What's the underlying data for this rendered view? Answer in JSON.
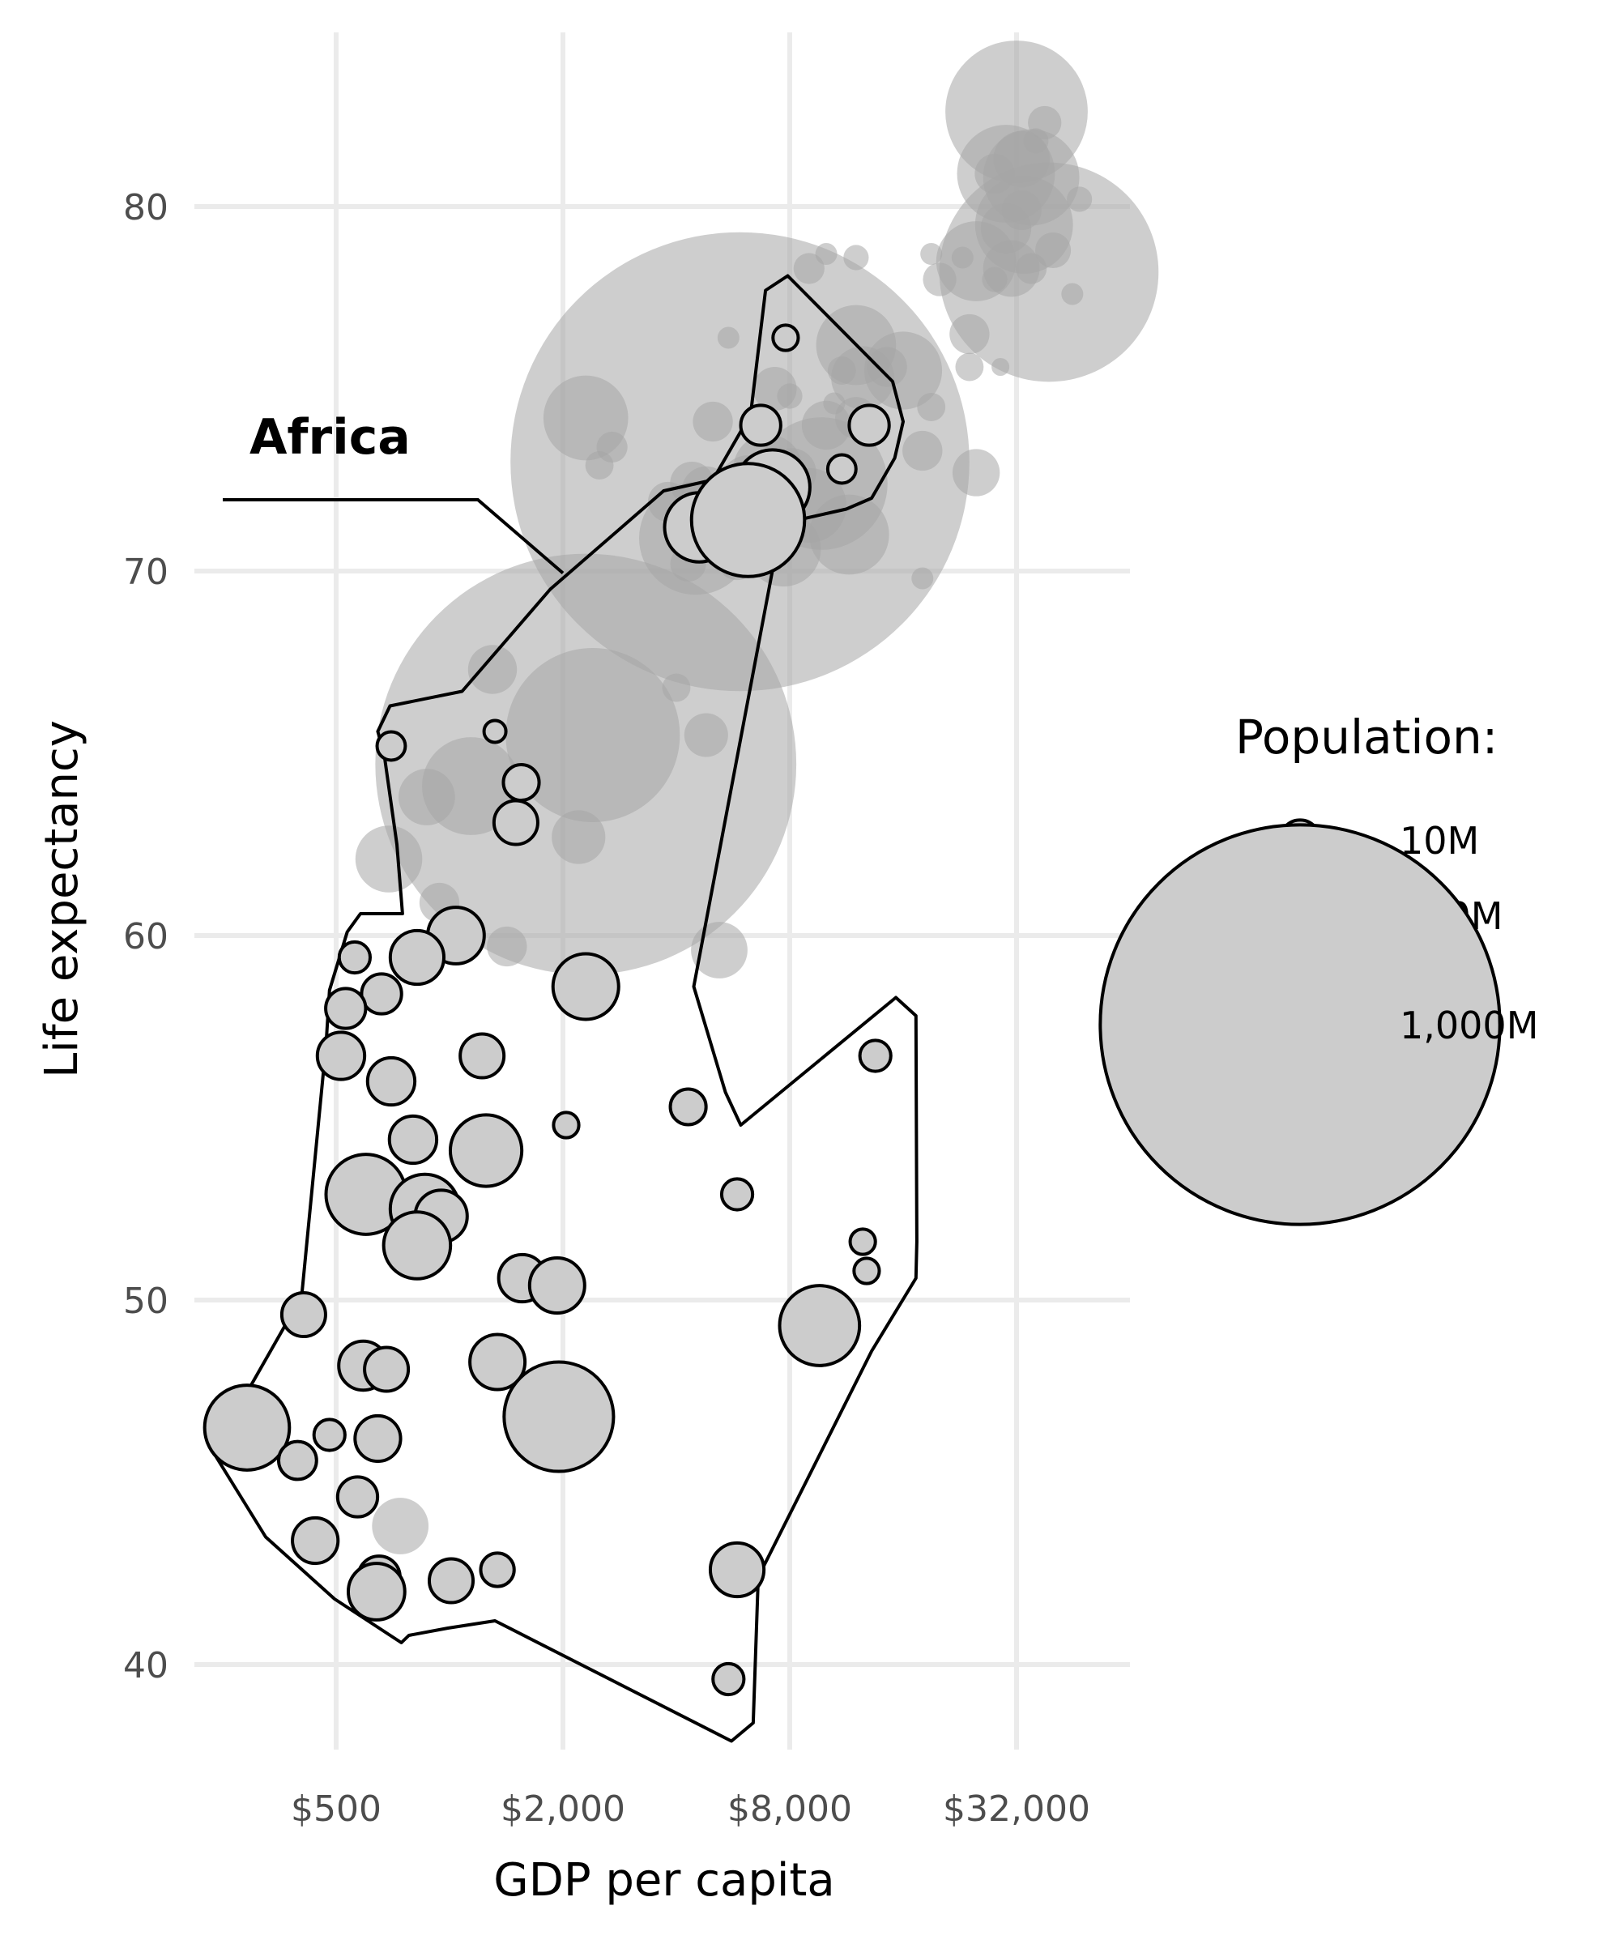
{
  "chart_data": {
    "type": "scatter",
    "xlabel": "GDP per capita",
    "ylabel": "Life expectancy",
    "x_scale": "log2",
    "x_ticks": [
      500,
      2000,
      8000,
      32000
    ],
    "x_tick_labels": [
      "$500",
      "$2,000",
      "$8,000",
      "$32,000"
    ],
    "y_ticks": [
      40,
      50,
      60,
      70,
      80
    ],
    "y_tick_labels": [
      "40",
      "50",
      "60",
      "70",
      "80"
    ],
    "xlim": [
      240,
      60000
    ],
    "ylim": [
      37,
      85
    ],
    "grid": true,
    "legend": {
      "title": "Population:",
      "position": "right",
      "entries": [
        {
          "label": "10M",
          "pop": 10
        },
        {
          "label": "100M",
          "pop": 100
        },
        {
          "label": "1,000M",
          "pop": 1000
        }
      ]
    },
    "annotation": {
      "text": "Africa",
      "target": [
        2000,
        69.5
      ]
    },
    "highlight_group": "Africa",
    "colors": {
      "point_fill": "#cccccc",
      "point_stroke": "#000000",
      "other_fill": "#a6a6a6",
      "hull_stroke": "#000000"
    },
    "hull": [
      [
        250,
        46.3
      ],
      [
        405,
        50.1
      ],
      [
        470,
        57.0
      ],
      [
        480,
        58.5
      ],
      [
        535,
        60.1
      ],
      [
        580,
        60.6
      ],
      [
        750,
        60.6
      ],
      [
        725,
        62.5
      ],
      [
        670,
        65.0
      ],
      [
        645,
        65.6
      ],
      [
        695,
        66.3
      ],
      [
        1080,
        66.7
      ],
      [
        1850,
        69.5
      ],
      [
        3700,
        72.2
      ],
      [
        5000,
        72.5
      ],
      [
        6300,
        74.3
      ],
      [
        6900,
        77.7
      ],
      [
        7900,
        78.1
      ],
      [
        15000,
        75.2
      ],
      [
        16000,
        74.1
      ],
      [
        15200,
        73.1
      ],
      [
        13200,
        72.0
      ],
      [
        11300,
        71.7
      ],
      [
        7600,
        71.3
      ],
      [
        4450,
        58.6
      ],
      [
        5400,
        55.7
      ],
      [
        5930,
        54.8
      ],
      [
        15300,
        58.3
      ],
      [
        17300,
        57.8
      ],
      [
        17400,
        51.6
      ],
      [
        17300,
        50.6
      ],
      [
        13200,
        48.6
      ],
      [
        6600,
        42.4
      ],
      [
        6400,
        38.4
      ],
      [
        5600,
        37.9
      ],
      [
        1320,
        41.2
      ],
      [
        990,
        41.0
      ],
      [
        780,
        40.8
      ],
      [
        745,
        40.6
      ],
      [
        495,
        41.8
      ],
      [
        325,
        43.5
      ],
      [
        240,
        45.7
      ],
      [
        250,
        46.3
      ]
    ],
    "series": [
      {
        "name": "Africa",
        "points": [
          {
            "x": 7800,
            "y": 76.4,
            "pop": 4
          },
          {
            "x": 6700,
            "y": 74.0,
            "pop": 10
          },
          {
            "x": 13000,
            "y": 74.0,
            "pop": 10
          },
          {
            "x": 11000,
            "y": 72.8,
            "pop": 5
          },
          {
            "x": 7200,
            "y": 72.3,
            "pop": 35
          },
          {
            "x": 4600,
            "y": 71.2,
            "pop": 30
          },
          {
            "x": 6200,
            "y": 71.4,
            "pop": 80
          },
          {
            "x": 700,
            "y": 65.2,
            "pop": 5
          },
          {
            "x": 1320,
            "y": 65.6,
            "pop": 3
          },
          {
            "x": 1550,
            "y": 64.2,
            "pop": 8
          },
          {
            "x": 1500,
            "y": 63.1,
            "pop": 12
          },
          {
            "x": 1040,
            "y": 60.0,
            "pop": 20
          },
          {
            "x": 820,
            "y": 59.4,
            "pop": 18
          },
          {
            "x": 560,
            "y": 59.4,
            "pop": 6
          },
          {
            "x": 660,
            "y": 58.4,
            "pop": 10
          },
          {
            "x": 2300,
            "y": 58.6,
            "pop": 27
          },
          {
            "x": 530,
            "y": 58.0,
            "pop": 10
          },
          {
            "x": 515,
            "y": 56.7,
            "pop": 14
          },
          {
            "x": 1220,
            "y": 56.7,
            "pop": 12
          },
          {
            "x": 13500,
            "y": 56.7,
            "pop": 6
          },
          {
            "x": 700,
            "y": 56.0,
            "pop": 14
          },
          {
            "x": 4300,
            "y": 55.3,
            "pop": 8
          },
          {
            "x": 2040,
            "y": 54.8,
            "pop": 4
          },
          {
            "x": 800,
            "y": 54.4,
            "pop": 14
          },
          {
            "x": 1250,
            "y": 54.1,
            "pop": 32
          },
          {
            "x": 5800,
            "y": 52.9,
            "pop": 6
          },
          {
            "x": 600,
            "y": 52.9,
            "pop": 40
          },
          {
            "x": 860,
            "y": 52.5,
            "pop": 30
          },
          {
            "x": 950,
            "y": 52.3,
            "pop": 17
          },
          {
            "x": 820,
            "y": 51.5,
            "pop": 28
          },
          {
            "x": 12500,
            "y": 51.6,
            "pop": 4
          },
          {
            "x": 12800,
            "y": 50.8,
            "pop": 4
          },
          {
            "x": 1560,
            "y": 50.6,
            "pop": 14
          },
          {
            "x": 1930,
            "y": 50.4,
            "pop": 19
          },
          {
            "x": 410,
            "y": 49.6,
            "pop": 12
          },
          {
            "x": 9600,
            "y": 49.3,
            "pop": 40
          },
          {
            "x": 590,
            "y": 48.2,
            "pop": 15
          },
          {
            "x": 680,
            "y": 48.1,
            "pop": 12
          },
          {
            "x": 1340,
            "y": 48.3,
            "pop": 19
          },
          {
            "x": 1950,
            "y": 46.8,
            "pop": 75
          },
          {
            "x": 290,
            "y": 46.5,
            "pop": 45
          },
          {
            "x": 645,
            "y": 46.2,
            "pop": 13
          },
          {
            "x": 480,
            "y": 46.3,
            "pop": 6
          },
          {
            "x": 395,
            "y": 45.6,
            "pop": 9
          },
          {
            "x": 570,
            "y": 44.6,
            "pop": 10
          },
          {
            "x": 440,
            "y": 43.4,
            "pop": 13
          },
          {
            "x": 5800,
            "y": 42.6,
            "pop": 18
          },
          {
            "x": 650,
            "y": 42.4,
            "pop": 11
          },
          {
            "x": 1340,
            "y": 42.6,
            "pop": 7
          },
          {
            "x": 1010,
            "y": 42.3,
            "pop": 12
          },
          {
            "x": 640,
            "y": 42.0,
            "pop": 20
          },
          {
            "x": 5500,
            "y": 39.6,
            "pop": 6
          }
        ]
      },
      {
        "name": "Other",
        "points": [
          {
            "x": 32000,
            "y": 82.6,
            "pop": 127
          },
          {
            "x": 38000,
            "y": 82.3,
            "pop": 7
          },
          {
            "x": 36000,
            "y": 81.8,
            "pop": 4
          },
          {
            "x": 33000,
            "y": 81.3,
            "pop": 20
          },
          {
            "x": 30000,
            "y": 80.9,
            "pop": 60
          },
          {
            "x": 35000,
            "y": 80.8,
            "pop": 58
          },
          {
            "x": 28000,
            "y": 80.9,
            "pop": 10
          },
          {
            "x": 33000,
            "y": 79.9,
            "pop": 10
          },
          {
            "x": 33500,
            "y": 79.5,
            "pop": 60
          },
          {
            "x": 47000,
            "y": 80.2,
            "pop": 4
          },
          {
            "x": 30000,
            "y": 79.4,
            "pop": 16
          },
          {
            "x": 40000,
            "y": 78.8,
            "pop": 8
          },
          {
            "x": 39000,
            "y": 78.2,
            "pop": 301
          },
          {
            "x": 23000,
            "y": 78.6,
            "pop": 3
          },
          {
            "x": 25000,
            "y": 78.5,
            "pop": 40
          },
          {
            "x": 31000,
            "y": 78.3,
            "pop": 20
          },
          {
            "x": 35000,
            "y": 78.3,
            "pop": 6
          },
          {
            "x": 28000,
            "y": 78.0,
            "pop": 4
          },
          {
            "x": 20000,
            "y": 78.0,
            "pop": 7
          },
          {
            "x": 19000,
            "y": 78.7,
            "pop": 3
          },
          {
            "x": 12000,
            "y": 78.6,
            "pop": 4
          },
          {
            "x": 10000,
            "y": 78.7,
            "pop": 3
          },
          {
            "x": 9000,
            "y": 78.3,
            "pop": 6
          },
          {
            "x": 45000,
            "y": 77.6,
            "pop": 3
          },
          {
            "x": 24000,
            "y": 76.5,
            "pop": 10
          },
          {
            "x": 12000,
            "y": 76.2,
            "pop": 40
          },
          {
            "x": 5500,
            "y": 76.4,
            "pop": 3
          },
          {
            "x": 24000,
            "y": 75.6,
            "pop": 5
          },
          {
            "x": 29000,
            "y": 75.6,
            "pop": 2
          },
          {
            "x": 11000,
            "y": 75.5,
            "pop": 5
          },
          {
            "x": 12500,
            "y": 75.3,
            "pop": 25
          },
          {
            "x": 14500,
            "y": 75.6,
            "pop": 10
          },
          {
            "x": 16000,
            "y": 75.5,
            "pop": 38
          },
          {
            "x": 7300,
            "y": 75.0,
            "pop": 12
          },
          {
            "x": 8000,
            "y": 74.8,
            "pop": 4
          },
          {
            "x": 10500,
            "y": 74.6,
            "pop": 3
          },
          {
            "x": 12000,
            "y": 74.2,
            "pop": 11
          },
          {
            "x": 19000,
            "y": 74.5,
            "pop": 5
          },
          {
            "x": 2300,
            "y": 74.2,
            "pop": 45
          },
          {
            "x": 5000,
            "y": 74.1,
            "pop": 10
          },
          {
            "x": 2700,
            "y": 73.4,
            "pop": 6
          },
          {
            "x": 10000,
            "y": 74.0,
            "pop": 15
          },
          {
            "x": 5900,
            "y": 73.0,
            "pop": 1319
          },
          {
            "x": 2500,
            "y": 72.9,
            "pop": 5
          },
          {
            "x": 3800,
            "y": 71.9,
            "pop": 10
          },
          {
            "x": 4400,
            "y": 72.4,
            "pop": 12
          },
          {
            "x": 4800,
            "y": 72.2,
            "pop": 15
          },
          {
            "x": 6200,
            "y": 72.4,
            "pop": 20
          },
          {
            "x": 7000,
            "y": 72.8,
            "pop": 30
          },
          {
            "x": 8100,
            "y": 72.7,
            "pop": 15
          },
          {
            "x": 9700,
            "y": 72.4,
            "pop": 110
          },
          {
            "x": 9000,
            "y": 71.8,
            "pop": 35
          },
          {
            "x": 7600,
            "y": 71.4,
            "pop": 15
          },
          {
            "x": 18000,
            "y": 73.3,
            "pop": 10
          },
          {
            "x": 25000,
            "y": 72.7,
            "pop": 14
          },
          {
            "x": 11500,
            "y": 71.0,
            "pop": 40
          },
          {
            "x": 4500,
            "y": 70.9,
            "pop": 80
          },
          {
            "x": 4300,
            "y": 70.2,
            "pop": 8
          },
          {
            "x": 5800,
            "y": 70.3,
            "pop": 10
          },
          {
            "x": 7700,
            "y": 70.6,
            "pop": 35
          },
          {
            "x": 18000,
            "y": 69.8,
            "pop": 3
          },
          {
            "x": 1300,
            "y": 67.3,
            "pop": 15
          },
          {
            "x": 4000,
            "y": 66.8,
            "pop": 5
          },
          {
            "x": 2400,
            "y": 65.5,
            "pop": 190
          },
          {
            "x": 2300,
            "y": 64.7,
            "pop": 1110
          },
          {
            "x": 4800,
            "y": 65.5,
            "pop": 12
          },
          {
            "x": 1140,
            "y": 64.1,
            "pop": 60
          },
          {
            "x": 870,
            "y": 63.8,
            "pop": 20
          },
          {
            "x": 2200,
            "y": 62.7,
            "pop": 18
          },
          {
            "x": 690,
            "y": 62.1,
            "pop": 28
          },
          {
            "x": 940,
            "y": 60.9,
            "pop": 10
          },
          {
            "x": 1420,
            "y": 59.7,
            "pop": 10
          },
          {
            "x": 5200,
            "y": 59.6,
            "pop": 20
          },
          {
            "x": 740,
            "y": 43.8,
            "pop": 20
          }
        ]
      }
    ]
  }
}
